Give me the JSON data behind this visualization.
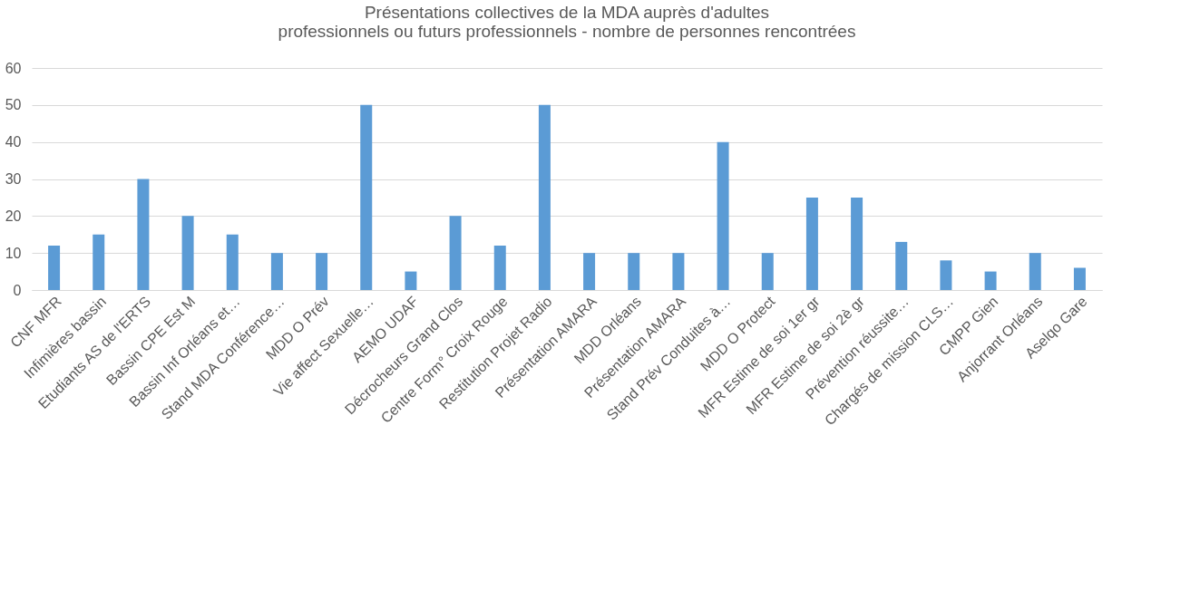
{
  "chart_data": {
    "type": "bar",
    "title": [
      "Présentations collectives de la MDA auprès d'adultes",
      "professionnels ou futurs professionnels - nombre de personnes rencontrées"
    ],
    "categories": [
      "CNF MFR",
      "Infimières bassin",
      "Etudiants AS de l'ERTS",
      "Bassin CPE Est M",
      "Bassin Inf Orléans et…",
      "Stand MDA Conférence…",
      "MDD O Prév",
      "Vie affect Sexuelle…",
      "AEMO UDAF",
      "Décrocheurs Grand Clos",
      "Centre Form° Croix Rouge",
      "Restitution Projet Radio",
      "Présentation AMARA",
      "MDD Orléans",
      "Présentation AMARA",
      "Stand Prév Conduites à…",
      "MDD O Protect",
      "MFR Estime de soi 1er gr",
      "MFR Estime de soi 2è gr",
      "Prévention réussite…",
      "Chargés de mission CLS…",
      "CMPP Gien",
      "Anjorrant Orléans",
      "Aselqo Gare"
    ],
    "values": [
      12,
      15,
      30,
      20,
      15,
      10,
      10,
      50,
      5,
      20,
      12,
      50,
      10,
      10,
      10,
      40,
      10,
      25,
      25,
      13,
      8,
      5,
      10,
      6
    ],
    "color": "#5b9bd5",
    "ylim": [
      0,
      60
    ],
    "yticks": [
      0,
      10,
      20,
      30,
      40,
      50,
      60
    ],
    "grid": "y"
  }
}
